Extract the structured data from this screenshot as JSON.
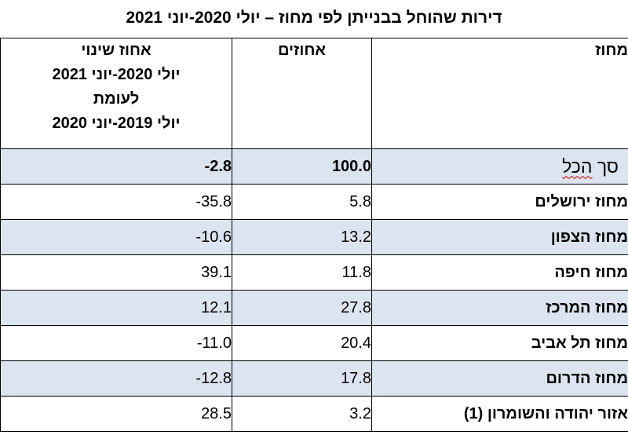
{
  "title": "דירות שהוחל בבנייתן לפי מחוז – יולי 2020-יוני 2021",
  "headers": {
    "district": "מחוז",
    "percent": "אחוזים",
    "change_lines": [
      "אחוז שינוי",
      "יולי 2020-יוני 2021",
      "לעומת",
      "יולי 2019-יוני 2020"
    ]
  },
  "total": {
    "district_word1": "סך",
    "district_word2": "הכל",
    "percent": "100.0",
    "change": "-2.8"
  },
  "rows": [
    {
      "district": "מחוז ירושלים",
      "percent": "5.8",
      "change": "-35.8"
    },
    {
      "district": "מחוז הצפון",
      "percent": "13.2",
      "change": "-10.6"
    },
    {
      "district": "מחוז חיפה",
      "percent": "11.8",
      "change": "39.1"
    },
    {
      "district": "מחוז המרכז",
      "percent": "27.8",
      "change": "12.1"
    },
    {
      "district": "מחוז תל אביב",
      "percent": "20.4",
      "change": "-11.0"
    },
    {
      "district": "מחוז הדרום",
      "percent": "17.8",
      "change": "-12.8"
    },
    {
      "district": "אזור יהודה והשומרון (1)",
      "percent": "3.2",
      "change": "28.5"
    }
  ],
  "colors": {
    "shaded_row": "#dce4f0",
    "border": "#000000"
  }
}
